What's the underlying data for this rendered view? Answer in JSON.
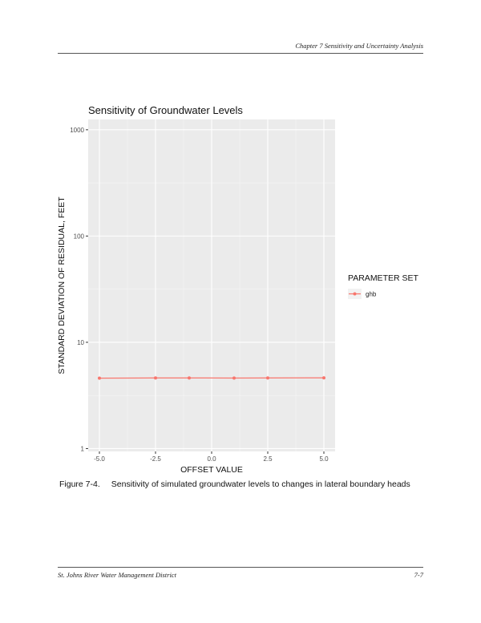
{
  "page": {
    "header": "Chapter 7  Sensitivity and Uncertainty Analysis",
    "footer_left": "St. Johns River Water Management District",
    "footer_right": "7-7"
  },
  "caption": {
    "number": "Figure 7-4.",
    "text": "Sensitivity of simulated groundwater levels to changes in lateral boundary heads"
  },
  "chart_data": {
    "type": "line",
    "title": "Sensitivity of Groundwater Levels",
    "xlabel": "OFFSET VALUE",
    "ylabel": "STANDARD DEVIATION OF RESIDUAL, FEET",
    "x_scale": "linear",
    "y_scale": "log",
    "xlim": [
      -5.5,
      5.5
    ],
    "ylim": [
      0.94,
      1250
    ],
    "x_ticks": [
      -5,
      -2.5,
      0,
      2.5,
      5
    ],
    "x_tick_labels": [
      "-5.0",
      "-2.5",
      "0.0",
      "2.5",
      "5.0"
    ],
    "y_ticks": [
      1,
      10,
      100,
      1000
    ],
    "y_tick_labels": [
      "1",
      "10",
      "100",
      "1000"
    ],
    "grid": true,
    "legend": {
      "title": "PARAMETER SET",
      "position": "right"
    },
    "series": [
      {
        "name": "ghb",
        "color": "#f8766d",
        "x": [
          -5,
          -2.5,
          -1,
          1,
          2.5,
          5
        ],
        "y": [
          4.6,
          4.62,
          4.62,
          4.61,
          4.62,
          4.63
        ]
      }
    ]
  }
}
